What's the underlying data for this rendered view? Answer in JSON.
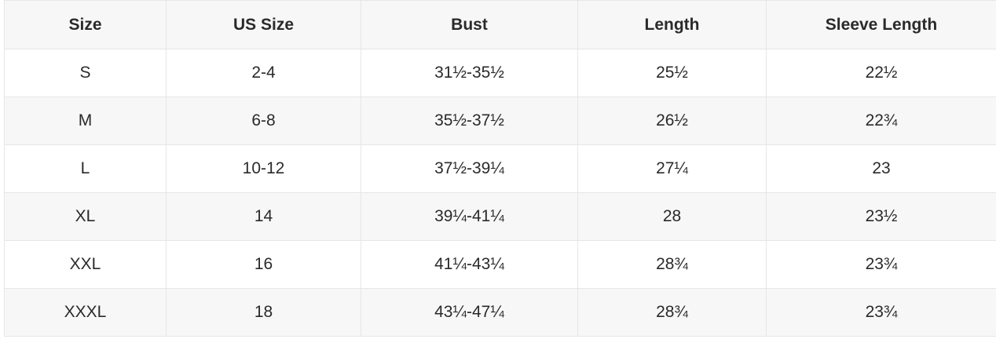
{
  "colors": {
    "header_bg": "#f7f7f7",
    "alt_row_bg": "#f7f7f7",
    "border": "#e6e6e6",
    "text": "#2a2a2a"
  },
  "table": {
    "headers": [
      "Size",
      "US Size",
      "Bust",
      "Length",
      "Sleeve Length"
    ],
    "rows": [
      [
        "S",
        "2-4",
        "31½-35½",
        "25½",
        "22½"
      ],
      [
        "M",
        "6-8",
        "35½-37½",
        "26½",
        "22¾"
      ],
      [
        "L",
        "10-12",
        "37½-39¼",
        "27¼",
        "23"
      ],
      [
        "XL",
        "14",
        "39¼-41¼",
        "28",
        "23½"
      ],
      [
        "XXL",
        "16",
        "41¼-43¼",
        "28¾",
        "23¾"
      ],
      [
        "XXXL",
        "18",
        "43¼-47¼",
        "28¾",
        "23¾"
      ]
    ]
  }
}
